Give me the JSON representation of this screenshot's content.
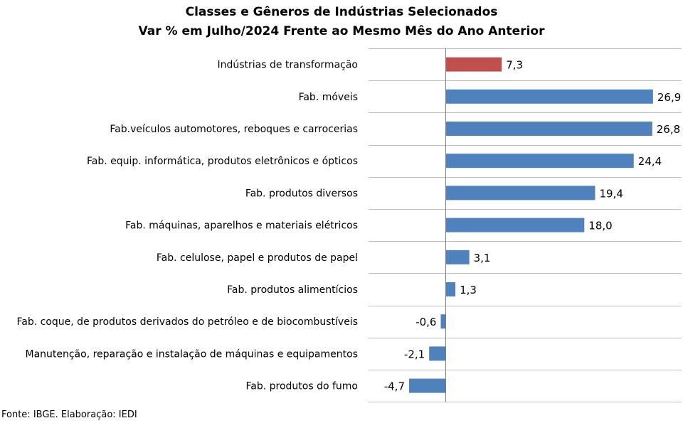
{
  "chart_data": {
    "type": "bar",
    "orientation": "horizontal",
    "title": "Classes e Gêneros de Indústrias Selecionados",
    "subtitle": "Var % em Julho/2024  Frente ao Mesmo Mês do Ano Anterior",
    "categories": [
      "Indústrias de transformação",
      "Fab. móveis",
      "Fab.veículos automotores, reboques e carrocerias",
      "Fab. equip. informática, produtos eletrônicos e ópticos",
      "Fab. produtos diversos",
      "Fab. máquinas, aparelhos e materiais elétricos",
      "Fab. celulose, papel e produtos de papel",
      "Fab. produtos alimentícios",
      "Fab. coque, de produtos derivados do petróleo e de biocombustíveis",
      "Manutenção, reparação e instalação de máquinas e equipamentos",
      "Fab. produtos do fumo"
    ],
    "values": [
      7.3,
      26.9,
      26.8,
      24.4,
      19.4,
      18.0,
      3.1,
      1.3,
      -0.6,
      -2.1,
      -4.7
    ],
    "value_labels": [
      "7,3",
      "26,9",
      "26,8",
      "24,4",
      "19,4",
      "18,0",
      "3,1",
      "1,3",
      "-0,6",
      "-2,1",
      "-4,7"
    ],
    "highlight_index": 0,
    "colors": {
      "highlight": "#c0504d",
      "bar": "#4f81bd",
      "grid": "#bfbfbf",
      "axis": "#7f7f7f"
    },
    "grid": true,
    "legend": false,
    "xlim": [
      -10,
      30
    ]
  },
  "source": "Fonte: IBGE. Elaboração: IEDI"
}
